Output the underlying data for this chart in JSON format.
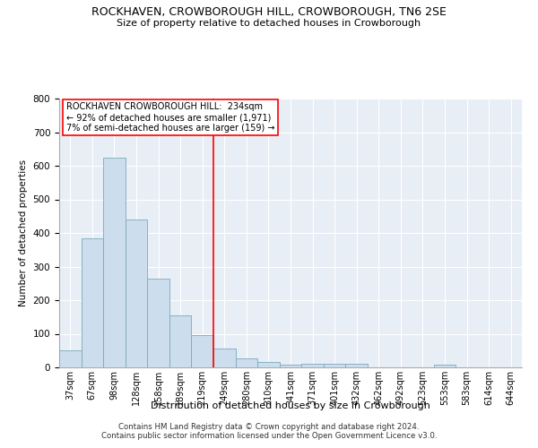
{
  "title": "ROCKHAVEN, CROWBOROUGH HILL, CROWBOROUGH, TN6 2SE",
  "subtitle": "Size of property relative to detached houses in Crowborough",
  "xlabel": "Distribution of detached houses by size in Crowborough",
  "ylabel": "Number of detached properties",
  "bar_color": "#ccdded",
  "bar_edge_color": "#7aaabb",
  "bg_color": "#e8eef6",
  "grid_color": "#ffffff",
  "categories": [
    "37sqm",
    "67sqm",
    "98sqm",
    "128sqm",
    "158sqm",
    "189sqm",
    "219sqm",
    "249sqm",
    "280sqm",
    "310sqm",
    "341sqm",
    "371sqm",
    "401sqm",
    "432sqm",
    "462sqm",
    "492sqm",
    "523sqm",
    "553sqm",
    "583sqm",
    "614sqm",
    "644sqm"
  ],
  "values": [
    50,
    385,
    625,
    440,
    265,
    155,
    97,
    55,
    28,
    17,
    9,
    11,
    10,
    10,
    0,
    0,
    0,
    7,
    0,
    0,
    0
  ],
  "vline_x": 6.5,
  "ylim": [
    0,
    800
  ],
  "yticks": [
    0,
    100,
    200,
    300,
    400,
    500,
    600,
    700,
    800
  ],
  "annotation_line1": "ROCKHAVEN CROWBOROUGH HILL:  234sqm",
  "annotation_line2": "← 92% of detached houses are smaller (1,971)",
  "annotation_line3": "7% of semi-detached houses are larger (159) →",
  "footer1": "Contains HM Land Registry data © Crown copyright and database right 2024.",
  "footer2": "Contains public sector information licensed under the Open Government Licence v3.0."
}
